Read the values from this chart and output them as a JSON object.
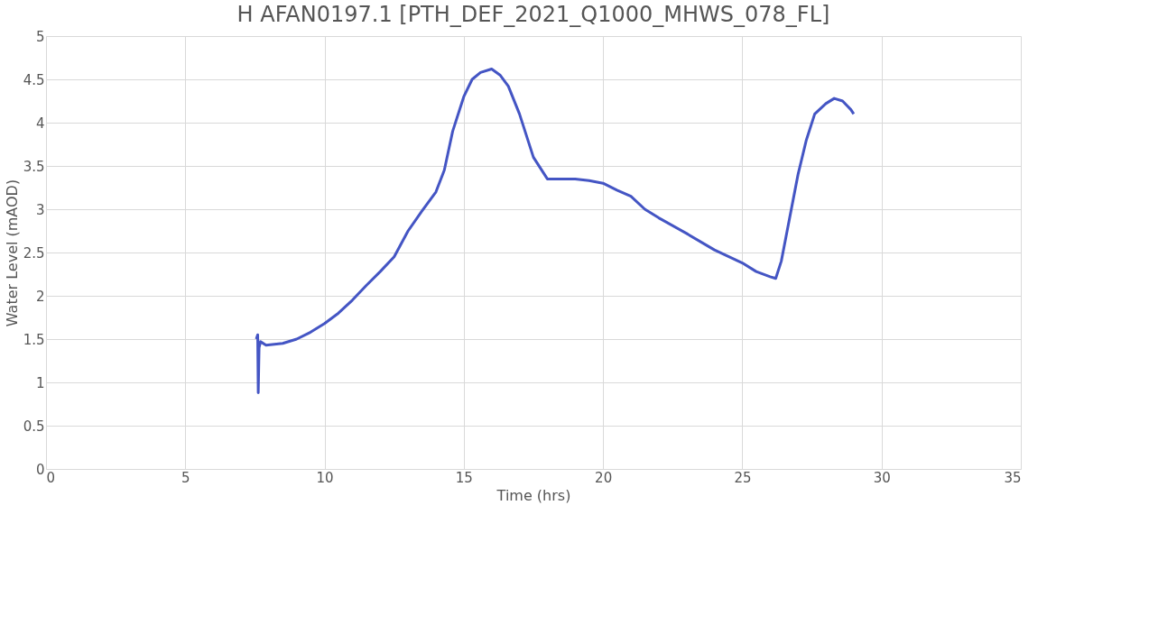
{
  "chart_data": {
    "type": "line",
    "title": "H AFAN0197.1 [PTH_DEF_2021_Q1000_MHWS_078_FL]",
    "xlabel": "Time (hrs)",
    "ylabel": "Water Level (mAOD)",
    "x": [
      7.55,
      7.6,
      7.62,
      7.65,
      7.7,
      7.9,
      8.5,
      9,
      9.5,
      10,
      10.5,
      11,
      11.5,
      12,
      12.5,
      13,
      13.5,
      14,
      14.3,
      14.6,
      15,
      15.3,
      15.6,
      16,
      16.3,
      16.6,
      17,
      17.5,
      18,
      18.5,
      19,
      19.5,
      20,
      20.5,
      21,
      21.5,
      22,
      23,
      24,
      25,
      25.5,
      26,
      26.2,
      26.4,
      26.7,
      27,
      27.3,
      27.6,
      28,
      28.3,
      28.6,
      28.9,
      29
    ],
    "series": [
      {
        "color": "#4455c4",
        "values": [
          1.5,
          1.55,
          0.88,
          1.4,
          1.47,
          1.43,
          1.45,
          1.5,
          1.58,
          1.68,
          1.8,
          1.95,
          2.12,
          2.28,
          2.45,
          2.75,
          2.98,
          3.2,
          3.45,
          3.9,
          4.3,
          4.5,
          4.58,
          4.62,
          4.55,
          4.42,
          4.1,
          3.6,
          3.35,
          3.35,
          3.35,
          3.33,
          3.3,
          3.22,
          3.15,
          3.0,
          2.9,
          2.72,
          2.53,
          2.38,
          2.28,
          2.22,
          2.2,
          2.4,
          2.9,
          3.4,
          3.8,
          4.1,
          4.22,
          4.28,
          4.25,
          4.15,
          4.1
        ]
      }
    ],
    "xlim": [
      0,
      35
    ],
    "xticks": [
      0,
      5,
      10,
      15,
      20,
      25,
      30,
      35
    ],
    "ylim": [
      0,
      5
    ],
    "yticks": [
      0,
      0.5,
      1,
      1.5,
      2,
      2.5,
      3,
      3.5,
      4,
      4.5,
      5
    ],
    "grid": true,
    "marker": "none",
    "line_style": "solid"
  }
}
